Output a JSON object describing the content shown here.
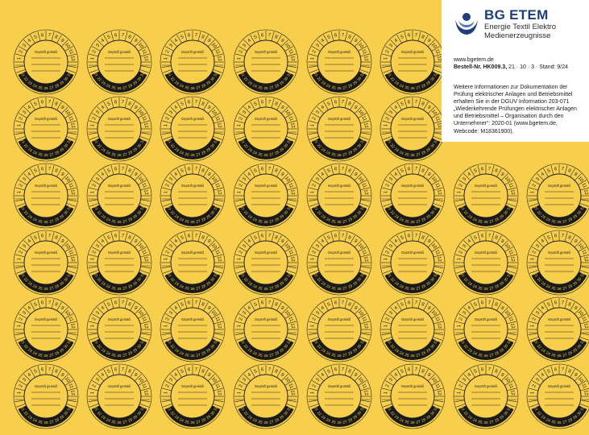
{
  "sticker": {
    "heading": "Geprüft gemäß",
    "top_numbers": [
      "1",
      "2",
      "3",
      "4",
      "5",
      "6",
      "7",
      "8",
      "9",
      "10",
      "11",
      "12"
    ],
    "bottom_numbers": [
      "21",
      "22",
      "23",
      "24",
      "25",
      "26",
      "27",
      "28",
      "29",
      "30",
      "31"
    ],
    "colors": {
      "ink": "#222222",
      "sticker_bg": "#f7cf4c",
      "band": "#1a1a1a",
      "band_text": "#f7cf4c"
    }
  },
  "sheet": {
    "background": "#f7cf4c",
    "row_counts": [
      6,
      6,
      8,
      8,
      8,
      8
    ]
  },
  "info": {
    "brand_name": "BG ETEM",
    "brand_line1": "Energie Textil Elektro",
    "brand_line2": "Medienerzeugnisse",
    "website": "www.bgetem.de",
    "order_label": "Bestell-Nr. HK009.3,",
    "order_rest": " 21 · 10 · 3 · Stand: 9/24",
    "details": "Weitere Informationen zur Dokumentation der Prüfung elektrischer Anlagen und Betriebsmittel erhalten Sie in der DGUV Information 203-071 „Wiederkehrende Prüfungen elektrischer Anlagen und Betriebsmittel – Organisation durch den Unternehmer“: 2020-01 (www.bgetem.de, Webcode: M18361900).",
    "logo_colors": {
      "blue": "#1d3f7a",
      "light_blue": "#4a78b8"
    }
  }
}
